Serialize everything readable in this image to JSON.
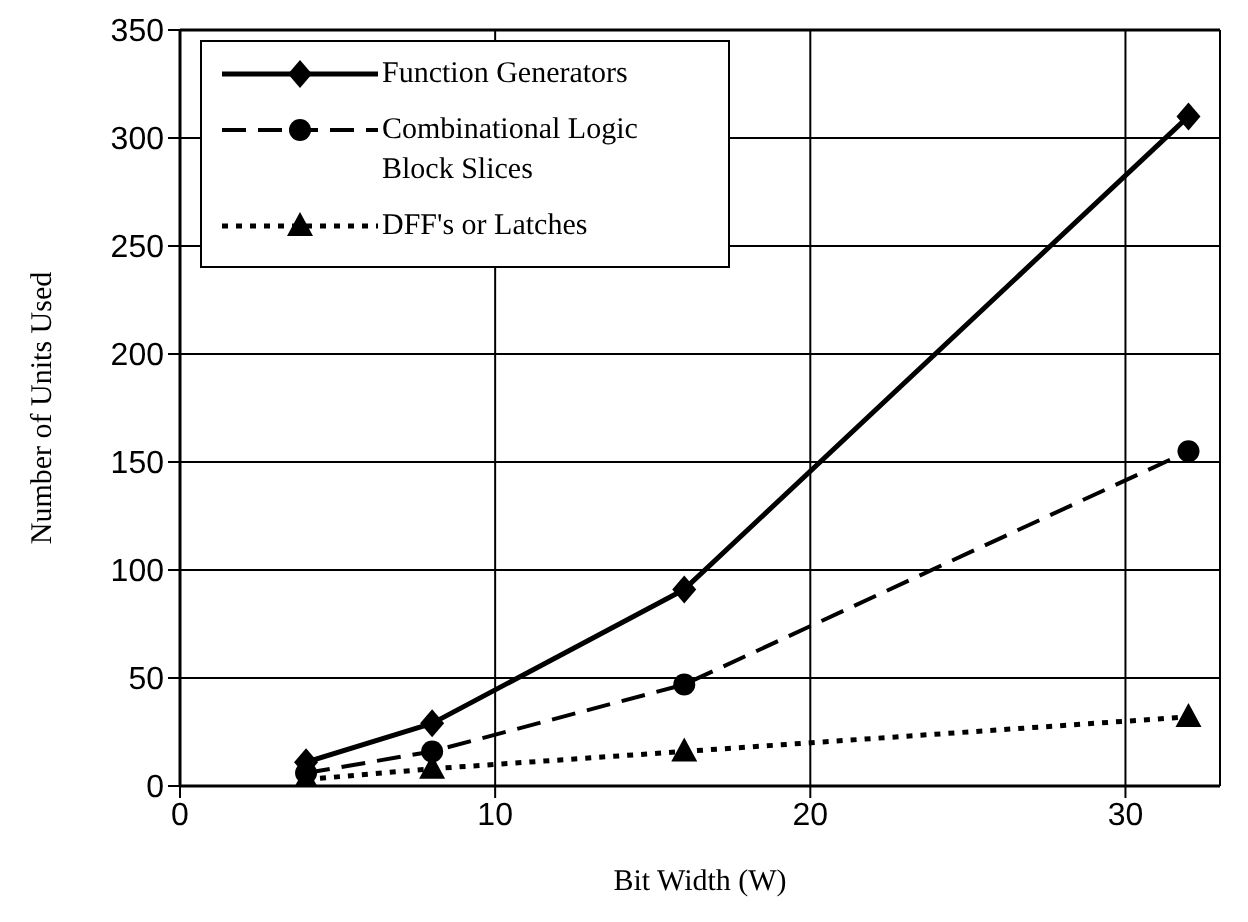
{
  "chart_data": {
    "type": "line",
    "xlabel": "Bit Width (W)",
    "ylabel": "Number of Units Used",
    "x": [
      4,
      8,
      16,
      32
    ],
    "series": [
      {
        "name": "Function Generators",
        "color": "#000000",
        "values": [
          11,
          29,
          91,
          310
        ],
        "marker": "diamond",
        "line_style": "solid"
      },
      {
        "name": "Combinational Logic Block Slices",
        "color": "#000000",
        "values": [
          6,
          16,
          47,
          155
        ],
        "marker": "circle",
        "line_style": "dashed"
      },
      {
        "name": "DFF's or Latches",
        "color": "#000000",
        "values": [
          3,
          8,
          16,
          32
        ],
        "marker": "triangle",
        "line_style": "dotted"
      }
    ],
    "xlim": [
      0,
      33
    ],
    "xticks": [
      0,
      10,
      20,
      30
    ],
    "ylim": [
      0,
      350
    ],
    "yticks": [
      0,
      50,
      100,
      150,
      200,
      250,
      300,
      350
    ],
    "grid": true,
    "legend": "top left"
  }
}
